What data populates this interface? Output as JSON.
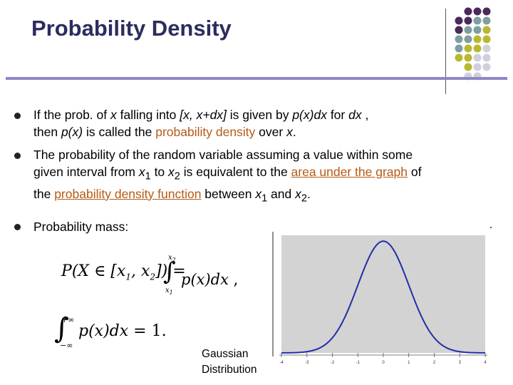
{
  "slide": {
    "title": "Probability Density",
    "accent_color": "#8c87c5",
    "highlight_color": "#b45a16",
    "bullet1": {
      "a": "If the prob. of ",
      "b": "x",
      "c": " falling into ",
      "d": "[x, x+dx]",
      "e": " is given by ",
      "f": "p(x)dx",
      "g": " for ",
      "h": "dx",
      "i": " ,",
      "j": "then ",
      "k": "p(x)",
      "l": " is called the ",
      "m": "probability density",
      "n": " over ",
      "o": "x",
      "p": "."
    },
    "bullet2": {
      "a": "The probability of the random variable assuming a value within some",
      "b": "given interval from ",
      "c": "x",
      "d": "1",
      "e": " to ",
      "f": "x",
      "g": "2",
      "h": " is equivalent to the ",
      "i": "area under the graph",
      "j": " of",
      "k": "the ",
      "l": "probability density function",
      "m": " between ",
      "n": "x",
      "o": "1",
      "p": " and ",
      "q": "x",
      "r": "2",
      "s": "."
    },
    "bullet3": "Probability mass:",
    "caption_line1": "Gaussian",
    "caption_line2": "Distribution"
  },
  "formula1": {
    "p": "P",
    "x": "X",
    "elem": "∈",
    "interval": "[x",
    "sub1": "1",
    "comma": ", x",
    "sub2": "2",
    "close": "]",
    "eq": "=",
    "int": "∫",
    "upper": "x",
    "upper_sub": "2",
    "lower": "x",
    "lower_sub": "1",
    "integrand": "p(x)dx",
    "trail": ","
  },
  "formula2": {
    "int": "∫",
    "upper": "+∞",
    "lower": "−∞",
    "integrand": "p(x)dx",
    "eq": "= 1."
  },
  "chart_data": {
    "type": "line",
    "title": "",
    "xlabel": "",
    "ylabel": "",
    "xlim": [
      -4,
      4
    ],
    "ylim": [
      0,
      0.42
    ],
    "x_ticks": [
      -4,
      -3,
      -2,
      -1,
      0,
      1,
      2,
      3,
      4
    ],
    "x_tick_labels": [
      "-4",
      "-3",
      "-2",
      "-1",
      "0",
      "1",
      "2",
      "3",
      "4"
    ],
    "series": [
      {
        "function": "standard normal density",
        "x": [
          -4,
          -3.5,
          -3,
          -2.5,
          -2,
          -1.5,
          -1,
          -0.5,
          0,
          0.5,
          1,
          1.5,
          2,
          2.5,
          3,
          3.5,
          4
        ],
        "y": [
          0.0001,
          0.0009,
          0.0044,
          0.0175,
          0.054,
          0.1295,
          0.242,
          0.3521,
          0.3989,
          0.3521,
          0.242,
          0.1295,
          0.054,
          0.0175,
          0.0044,
          0.0009,
          0.0001
        ],
        "color": "#1f2fa8"
      }
    ],
    "plot_background": "#d3d3d3",
    "grid": false
  },
  "decor": {
    "dot_colors": [
      "#4a2a5a",
      "#7f9ea0",
      "#b8b832",
      "#d0d0dd"
    ]
  }
}
